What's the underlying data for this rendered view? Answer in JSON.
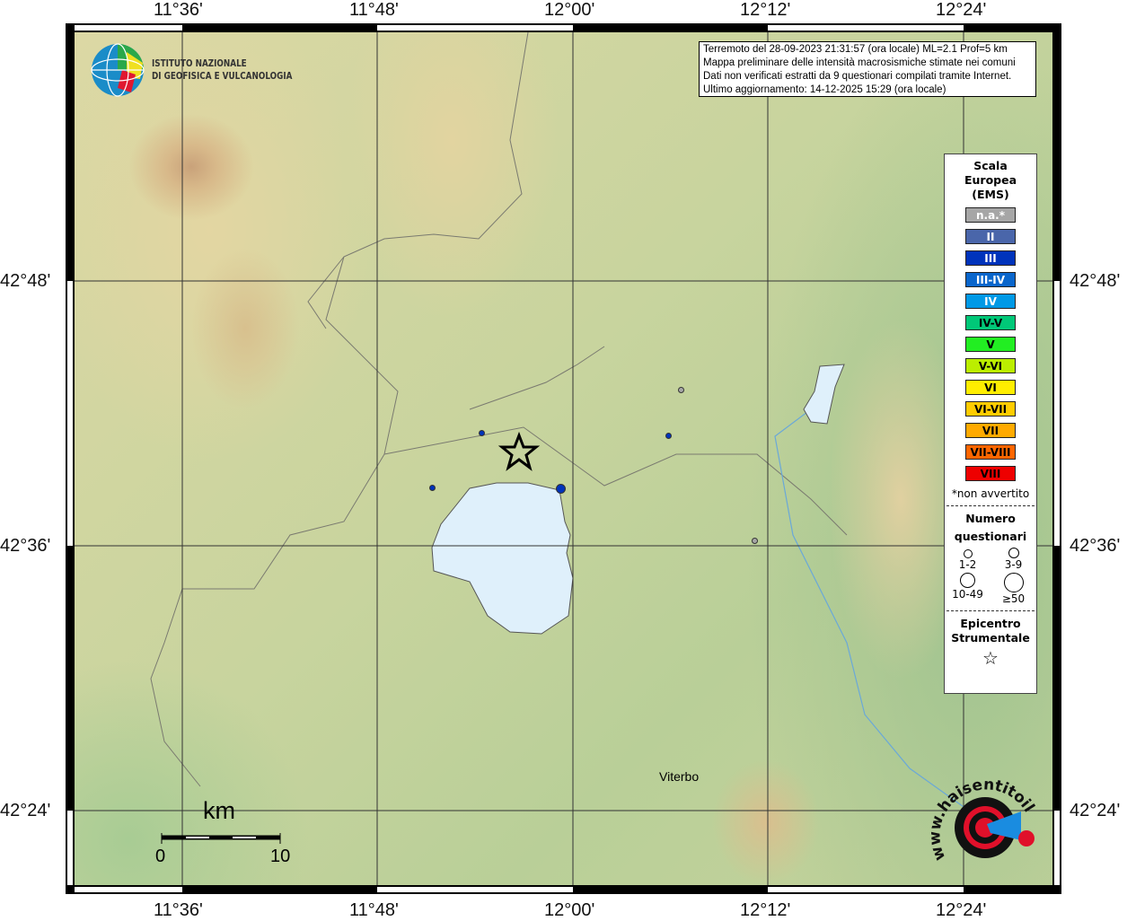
{
  "map": {
    "top_labels": [
      "11°36'",
      "11°48'",
      "12°00'",
      "12°12'",
      "12°24'"
    ],
    "bottom_labels": [
      "11°36'",
      "11°48'",
      "12°00'",
      "12°12'",
      "12°24'"
    ],
    "left_labels": [
      "42°48'",
      "42°36'",
      "42°24'"
    ],
    "right_labels": [
      "42°48'",
      "42°36'",
      "42°24'"
    ],
    "place": "Viterbo",
    "scale": {
      "unit": "km",
      "min": "0",
      "max": "10"
    }
  },
  "logo": {
    "line1": "ISTITUTO NAZIONALE",
    "line2": "DI GEOFISICA E VULCANOLOGIA"
  },
  "info": {
    "lines": [
      "Terremoto del 28-09-2023 21:31:57 (ora locale) ML=2.1 Prof=5 km",
      "Mappa preliminare delle intensità macrosismiche stimate nei comuni",
      "Dati non verificati estratti da 9 questionari compilati tramite Internet.",
      "Ultimo aggiornamento: 14-12-2025 15:29 (ora locale)"
    ]
  },
  "legend": {
    "title": [
      "Scala",
      "Europea",
      "(EMS)"
    ],
    "classes": [
      {
        "label": "n.a.*",
        "color": "#a6a6a6",
        "text": "#fff"
      },
      {
        "label": "II",
        "color": "#4a66aa",
        "text": "#fff"
      },
      {
        "label": "III",
        "color": "#0033bb",
        "text": "#fff"
      },
      {
        "label": "III-IV",
        "color": "#0a66cc",
        "text": "#fff"
      },
      {
        "label": "IV",
        "color": "#0099e6",
        "text": "#fff"
      },
      {
        "label": "IV-V",
        "color": "#00c878",
        "text": "#000"
      },
      {
        "label": "V",
        "color": "#22ee22",
        "text": "#000"
      },
      {
        "label": "V-VI",
        "color": "#bbee00",
        "text": "#000"
      },
      {
        "label": "VI",
        "color": "#ffee00",
        "text": "#000"
      },
      {
        "label": "VI-VII",
        "color": "#ffcc00",
        "text": "#000"
      },
      {
        "label": "VII",
        "color": "#ffaa00",
        "text": "#000"
      },
      {
        "label": "VII-VIII",
        "color": "#ff6600",
        "text": "#000"
      },
      {
        "label": "VIII",
        "color": "#ee0000",
        "text": "#000"
      }
    ],
    "note": "*non avvertito",
    "count_title": [
      "Numero",
      "questionari"
    ],
    "counts": [
      "1-2",
      "3-9",
      "10-49",
      "≥50"
    ],
    "epicentre": [
      "Epicentro",
      "Strumentale"
    ]
  },
  "points": [
    {
      "intensity": "n.a.*",
      "count": "1-2",
      "color": "#a6a6a6"
    },
    {
      "intensity": "n.a.*",
      "count": "1-2",
      "color": "#a6a6a6"
    },
    {
      "intensity": "III",
      "count": "1-2",
      "color": "#0033bb"
    },
    {
      "intensity": "III",
      "count": "1-2",
      "color": "#0033bb"
    },
    {
      "intensity": "III",
      "count": "1-2",
      "color": "#0033bb"
    },
    {
      "intensity": "III",
      "count": "3-9",
      "color": "#0033bb"
    }
  ],
  "watermark": "www.haisentitoilterremoto.it"
}
